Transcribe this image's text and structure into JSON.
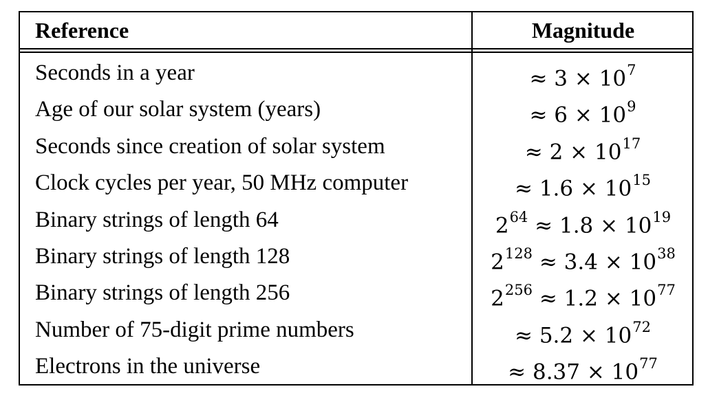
{
  "header": {
    "reference": "Reference",
    "magnitude": "Magnitude"
  },
  "rows": [
    {
      "reference": "Seconds in a year",
      "magnitude": {
        "prefix": "≈ 3 × 10",
        "exp": "7",
        "tail": "",
        "tailexp": ""
      }
    },
    {
      "reference": "Age of our solar system (years)",
      "magnitude": {
        "prefix": "≈ 6 × 10",
        "exp": "9",
        "tail": "",
        "tailexp": ""
      }
    },
    {
      "reference": "Seconds since creation of solar system",
      "magnitude": {
        "prefix": "≈ 2 × 10",
        "exp": "17",
        "tail": "",
        "tailexp": ""
      }
    },
    {
      "reference": "Clock cycles per year, 50 MHz computer",
      "magnitude": {
        "prefix": "≈ 1.6 × 10",
        "exp": "15",
        "tail": "",
        "tailexp": ""
      }
    },
    {
      "reference": "Binary strings of length 64",
      "magnitude": {
        "prefix": "2",
        "exp": "64",
        "tail": " ≈ 1.8 × 10",
        "tailexp": "19"
      }
    },
    {
      "reference": "Binary strings of length 128",
      "magnitude": {
        "prefix": "2",
        "exp": "128",
        "tail": " ≈ 3.4 × 10",
        "tailexp": "38"
      }
    },
    {
      "reference": "Binary strings of length 256",
      "magnitude": {
        "prefix": "2",
        "exp": "256",
        "tail": " ≈ 1.2 × 10",
        "tailexp": "77"
      }
    },
    {
      "reference": "Number of 75-digit prime numbers",
      "magnitude": {
        "prefix": "≈ 5.2 × 10",
        "exp": "72",
        "tail": "",
        "tailexp": ""
      }
    },
    {
      "reference": "Electrons in the universe",
      "magnitude": {
        "prefix": "≈ 8.37 × 10",
        "exp": "77",
        "tail": "",
        "tailexp": ""
      }
    }
  ]
}
